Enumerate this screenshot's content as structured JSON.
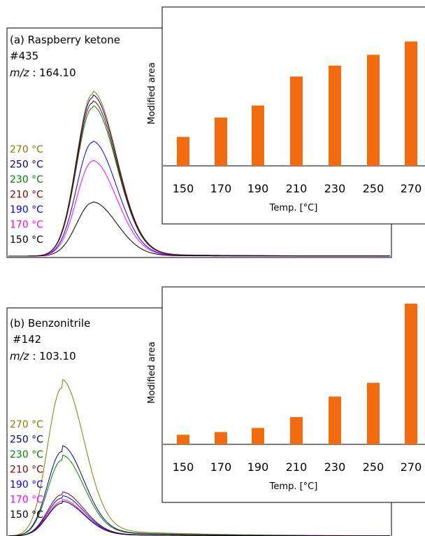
{
  "panels": [
    {
      "label": "(a) Raspberry ketone",
      "id_text": "#435",
      "mz_prefix": "m/z",
      "mz_value": " : 164.10",
      "legend": [
        {
          "text": "270 °C",
          "color": "#808000"
        },
        {
          "text": "250 °C",
          "color": "#00007f"
        },
        {
          "text": "230 °C",
          "color": "#007f00"
        },
        {
          "text": "210 °C",
          "color": "#7f0000"
        },
        {
          "text": "190 °C",
          "color": "#0000ff"
        },
        {
          "text": "170 °C",
          "color": "#ff00ff"
        },
        {
          "text": "150 °C",
          "color": "#000000"
        }
      ],
      "peak_heights": [
        0.94,
        0.92,
        0.86,
        0.89,
        0.66,
        0.55,
        0.31
      ],
      "tail_levels": [
        0.018,
        0.016,
        0.014,
        0.012,
        0.008,
        0.006,
        0.005
      ],
      "peak_width": 0.055,
      "peak_pos": 0.22
    },
    {
      "label": "(b) Benzonitrile",
      "id_text": "#142",
      "mz_prefix": "m/z",
      "mz_value": " : 103.10",
      "legend": [
        {
          "text": "270 °C",
          "color": "#808000"
        },
        {
          "text": "250 °C",
          "color": "#00007f"
        },
        {
          "text": "230 °C",
          "color": "#007f00"
        },
        {
          "text": "210 °C",
          "color": "#7f0000"
        },
        {
          "text": "190 °C",
          "color": "#0000ff"
        },
        {
          "text": "170 °C",
          "color": "#ff00ff"
        },
        {
          "text": "150 °C",
          "color": "#000000"
        }
      ],
      "peak_heights": [
        0.86,
        0.49,
        0.44,
        0.24,
        0.22,
        0.2,
        0.19
      ],
      "tail_levels": [
        0.05,
        0.035,
        0.03,
        0.016,
        0.014,
        0.012,
        0.012
      ],
      "peak_width": 0.05,
      "peak_pos": 0.14
    }
  ],
  "chart_data": [
    {
      "type": "bar",
      "title": "",
      "categories": [
        "150",
        "170",
        "190",
        "210",
        "230",
        "250",
        "270"
      ],
      "values": [
        0.24,
        0.4,
        0.5,
        0.74,
        0.83,
        0.92,
        1.03
      ],
      "xlabel": "Temp. [°C]",
      "ylabel": "Modified area",
      "ylim": [
        0,
        1.2
      ],
      "bar_color": "#f26b0f",
      "grid": false
    },
    {
      "type": "bar",
      "title": "",
      "categories": [
        "150",
        "170",
        "190",
        "210",
        "230",
        "250",
        "270"
      ],
      "values": [
        0.07,
        0.09,
        0.12,
        0.2,
        0.35,
        0.45,
        1.03
      ],
      "xlabel": "Temp. [°C]",
      "ylabel": "Modified area",
      "ylim": [
        0,
        1.05
      ],
      "bar_color": "#f26b0f",
      "grid": false
    }
  ]
}
